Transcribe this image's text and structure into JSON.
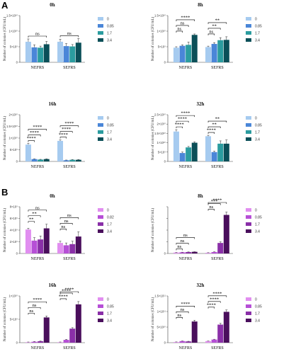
{
  "panels": [
    {
      "letter": "A"
    },
    {
      "letter": "B"
    }
  ],
  "chart_data": [
    {
      "type": "bar",
      "panel": "A",
      "title": "0h",
      "ylabel": "Number of colonies (CFU/mL)",
      "ylim": [
        0,
        15000000000.0
      ],
      "yticks": [
        0,
        5000000000.0,
        10000000000.0,
        15000000000.0
      ],
      "ytick_labels": [
        "0",
        "5×10⁹",
        "1×10¹⁰",
        "1.5×10¹⁰"
      ],
      "categories": [
        "NEFRS",
        "SEFRS"
      ],
      "legend": [
        "0",
        "0.85",
        "1.7",
        "3.4"
      ],
      "colors": [
        "#a6cbf0",
        "#4a86d8",
        "#2b9c9f",
        "#0b4f58"
      ],
      "series": [
        {
          "name": "0",
          "values": [
            6600000000.0,
            6600000000.0
          ],
          "err": [
            900000000.0,
            800000000.0
          ]
        },
        {
          "name": "0.85",
          "values": [
            4800000000.0,
            5200000000.0
          ],
          "err": [
            800000000.0,
            800000000.0
          ]
        },
        {
          "name": "1.7",
          "values": [
            4700000000.0,
            5100000000.0
          ],
          "err": [
            500000000.0,
            600000000.0
          ]
        },
        {
          "name": "3.4",
          "values": [
            5800000000.0,
            6300000000.0
          ],
          "err": [
            900000000.0,
            1300000000.0
          ]
        }
      ],
      "annotations": [
        {
          "group": 0,
          "from": 0,
          "to": 3,
          "label": "ns",
          "level": 0
        },
        {
          "group": 1,
          "from": 0,
          "to": 3,
          "label": "ns",
          "level": 0
        }
      ]
    },
    {
      "type": "bar",
      "panel": "A",
      "title": "8h",
      "ylabel": "Number of colonies (CFU/mL)",
      "ylim": [
        0,
        15000000000.0
      ],
      "yticks": [
        0,
        5000000000.0,
        10000000000.0,
        15000000000.0
      ],
      "ytick_labels": [
        "0",
        "5×10⁹",
        "1×10¹⁰",
        "1.5×10¹⁰"
      ],
      "categories": [
        "NEFRS",
        "SEFRS"
      ],
      "legend": [
        "0",
        "0.85",
        "1.7",
        "3.4"
      ],
      "colors": [
        "#a6cbf0",
        "#4a86d8",
        "#2b9c9f",
        "#0b4f58"
      ],
      "series": [
        {
          "name": "0",
          "values": [
            4700000000.0,
            4900000000.0
          ],
          "err": [
            300000000.0,
            300000000.0
          ]
        },
        {
          "name": "0.85",
          "values": [
            5300000000.0,
            5900000000.0
          ],
          "err": [
            300000000.0,
            400000000.0
          ]
        },
        {
          "name": "1.7",
          "values": [
            5600000000.0,
            7100000000.0
          ],
          "err": [
            900000000.0,
            800000000.0
          ]
        },
        {
          "name": "3.4",
          "values": [
            8800000000.0,
            7200000000.0
          ],
          "err": [
            300000000.0,
            1000000000.0
          ]
        }
      ],
      "annotations": [
        {
          "group": 0,
          "from": 0,
          "to": 1,
          "label": "ns",
          "level": 0
        },
        {
          "group": 0,
          "from": 0,
          "to": 2,
          "label": "ns",
          "level": 1
        },
        {
          "group": 0,
          "from": 0,
          "to": 3,
          "label": "****",
          "level": 2
        },
        {
          "group": 1,
          "from": 0,
          "to": 1,
          "label": "ns",
          "level": 0
        },
        {
          "group": 1,
          "from": 0,
          "to": 2,
          "label": "**",
          "level": 1
        },
        {
          "group": 1,
          "from": 0,
          "to": 3,
          "label": "**",
          "level": 2
        }
      ]
    },
    {
      "type": "bar",
      "panel": "A",
      "title": "16h",
      "ylabel": "Number of colonies (CFU/mL)",
      "ylim": [
        0,
        20000000000.0
      ],
      "yticks": [
        0,
        5000000000.0,
        10000000000.0,
        15000000000.0,
        20000000000.0
      ],
      "ytick_labels": [
        "0",
        "5×10⁹",
        "1×10¹⁰",
        "1.5×10¹⁰",
        "2×10¹⁰"
      ],
      "categories": [
        "NEFRS",
        "SEFRS"
      ],
      "legend": [
        "0",
        "0.85",
        "1.7",
        "3.4"
      ],
      "colors": [
        "#a6cbf0",
        "#4a86d8",
        "#2b9c9f",
        "#0b4f58"
      ],
      "series": [
        {
          "name": "0",
          "values": [
            7200000000.0,
            8800000000.0
          ],
          "err": [
            500000000.0,
            400000000.0
          ]
        },
        {
          "name": "0.85",
          "values": [
            1000000000.0,
            500000000.0
          ],
          "err": [
            100000000.0,
            100000000.0
          ]
        },
        {
          "name": "1.7",
          "values": [
            800000000.0,
            700000000.0
          ],
          "err": [
            100000000.0,
            100000000.0
          ]
        },
        {
          "name": "3.4",
          "values": [
            1000000000.0,
            700000000.0
          ],
          "err": [
            100000000.0,
            100000000.0
          ]
        }
      ],
      "annotations": [
        {
          "group": 0,
          "from": 0,
          "to": 1,
          "label": "****",
          "level": 0
        },
        {
          "group": 0,
          "from": 0,
          "to": 2,
          "label": "****",
          "level": 1
        },
        {
          "group": 0,
          "from": 0,
          "to": 3,
          "label": "****",
          "level": 2
        },
        {
          "group": 1,
          "from": 0,
          "to": 1,
          "label": "****",
          "level": 0
        },
        {
          "group": 1,
          "from": 0,
          "to": 2,
          "label": "****",
          "level": 1
        },
        {
          "group": 1,
          "from": 0,
          "to": 3,
          "label": "****",
          "level": 2
        }
      ]
    },
    {
      "type": "bar",
      "panel": "A",
      "title": "32h",
      "ylabel": "Number of colonies (CFU/mL)",
      "ylim": [
        0,
        25000000000.0
      ],
      "yticks": [
        0,
        5000000000.0,
        10000000000.0,
        15000000000.0,
        20000000000.0,
        25000000000.0
      ],
      "ytick_labels": [
        "0",
        "5×10⁹",
        "1×10¹⁰",
        "1.5×10¹⁰",
        "2×10¹⁰",
        "2.5×10¹⁰"
      ],
      "categories": [
        "NEFRS",
        "SEFRS"
      ],
      "legend": [
        "0",
        "0.85",
        "1.7",
        "3.4"
      ],
      "colors": [
        "#a6cbf0",
        "#4a86d8",
        "#2b9c9f",
        "#0b4f58"
      ],
      "series": [
        {
          "name": "0",
          "values": [
            16000000000.0,
            13500000000.0
          ],
          "err": [
            1000000000.0,
            500000000.0
          ]
        },
        {
          "name": "0.85",
          "values": [
            4500000000.0,
            5000000000.0
          ],
          "err": [
            500000000.0,
            500000000.0
          ]
        },
        {
          "name": "1.7",
          "values": [
            7500000000.0,
            9500000000.0
          ],
          "err": [
            500000000.0,
            1500000000.0
          ]
        },
        {
          "name": "3.4",
          "values": [
            10000000000.0,
            9500000000.0
          ],
          "err": [
            500000000.0,
            2000000000.0
          ]
        }
      ],
      "annotations": [
        {
          "group": 0,
          "from": 0,
          "to": 1,
          "label": "****",
          "level": 0
        },
        {
          "group": 0,
          "from": 0,
          "to": 2,
          "label": "****",
          "level": 1
        },
        {
          "group": 0,
          "from": 0,
          "to": 3,
          "label": "****",
          "level": 2
        },
        {
          "group": 1,
          "from": 0,
          "to": 1,
          "label": "****",
          "level": 0
        },
        {
          "group": 1,
          "from": 0,
          "to": 2,
          "label": "**",
          "level": 1
        },
        {
          "group": 1,
          "from": 0,
          "to": 3,
          "label": "**",
          "level": 2
        }
      ]
    },
    {
      "type": "bar",
      "panel": "B",
      "title": "0h",
      "ylabel": "Number of colonies (CFU/mL)",
      "ylim": [
        0,
        8000000000.0
      ],
      "yticks": [
        0,
        2000000000.0,
        4000000000.0,
        6000000000.0,
        8000000000.0
      ],
      "ytick_labels": [
        "0",
        "2×10⁹",
        "4×10⁹",
        "6×10⁹",
        "8×10⁹"
      ],
      "categories": [
        "NEFRS",
        "SEFRS"
      ],
      "legend": [
        "0",
        "0.82",
        "1.7",
        "3.4"
      ],
      "colors": [
        "#e18ef0",
        "#b64fd6",
        "#8a2fa8",
        "#4a0f5c"
      ],
      "series": [
        {
          "name": "0",
          "values": [
            4100000000.0,
            1800000000.0
          ],
          "err": [
            200000000.0,
            300000000.0
          ]
        },
        {
          "name": "0.82",
          "values": [
            2200000000.0,
            1400000000.0
          ],
          "err": [
            500000000.0,
            400000000.0
          ]
        },
        {
          "name": "1.7",
          "values": [
            2400000000.0,
            1600000000.0
          ],
          "err": [
            600000000.0,
            500000000.0
          ]
        },
        {
          "name": "3.4",
          "values": [
            4300000000.0,
            2900000000.0
          ],
          "err": [
            700000000.0,
            800000000.0
          ]
        }
      ],
      "annotations": [
        {
          "group": 0,
          "from": 0,
          "to": 1,
          "label": "**",
          "level": 0
        },
        {
          "group": 0,
          "from": 0,
          "to": 2,
          "label": "**",
          "level": 1
        },
        {
          "group": 0,
          "from": 0,
          "to": 3,
          "label": "ns",
          "level": 2
        },
        {
          "group": 1,
          "from": 0,
          "to": 1,
          "label": "ns",
          "level": 0
        },
        {
          "group": 1,
          "from": 0,
          "to": 2,
          "label": "ns",
          "level": 1
        },
        {
          "group": 1,
          "from": 0,
          "to": 3,
          "label": "ns",
          "level": 2
        }
      ]
    },
    {
      "type": "bar",
      "panel": "B",
      "title": "8h",
      "ylabel": "Number of colonies (CFU/mL)",
      "ylim": [
        0,
        200000000000.0
      ],
      "yticks": [
        0,
        50000000000.0,
        100000000000.0,
        150000000000.0,
        200000000000.0
      ],
      "ytick_labels": [
        "0",
        "",
        "",
        "",
        ""
      ],
      "categories": [
        "NEFRS",
        "SEFRS"
      ],
      "legend": [
        "0",
        "0.85",
        "1.7",
        "3.4"
      ],
      "colors": [
        "#e18ef0",
        "#b64fd6",
        "#8a2fa8",
        "#4a0f5c"
      ],
      "series": [
        {
          "name": "0",
          "values": [
            4000000000.0,
            3000000000.0
          ],
          "err": [
            500000000.0,
            500000000.0
          ]
        },
        {
          "name": "0.85",
          "values": [
            5000000000.0,
            6000000000.0
          ],
          "err": [
            500000000.0,
            1000000000.0
          ]
        },
        {
          "name": "1.7",
          "values": [
            6000000000.0,
            45000000000.0
          ],
          "err": [
            500000000.0,
            5000000000.0
          ]
        },
        {
          "name": "3.4",
          "values": [
            7000000000.0,
            165000000000.0
          ],
          "err": [
            500000000.0,
            12000000000.0
          ]
        }
      ],
      "annotations": [
        {
          "group": 0,
          "from": 0,
          "to": 1,
          "label": "ns",
          "level": 0
        },
        {
          "group": 0,
          "from": 0,
          "to": 2,
          "label": "ns",
          "level": 1
        },
        {
          "group": 0,
          "from": 0,
          "to": 3,
          "label": "ns",
          "level": 2
        },
        {
          "group": 1,
          "from": 0,
          "to": 1,
          "label": "ns",
          "level": 0
        },
        {
          "group": 1,
          "from": 0,
          "to": 2,
          "label": "***",
          "level": 1
        },
        {
          "group": 1,
          "from": 0,
          "to": 3,
          "label": "****",
          "level": 2
        }
      ]
    },
    {
      "type": "bar",
      "panel": "B",
      "title": "16h",
      "ylabel": "Number of colonies (CFU/mL)",
      "ylim": [
        0,
        10000000000.0
      ],
      "yticks": [
        0,
        5000000000.0,
        10000000000.0
      ],
      "ytick_labels": [
        "0",
        "5×10⁹",
        "1×10¹⁰"
      ],
      "categories": [
        "NEFRS",
        "SEFRS"
      ],
      "legend": [
        "0",
        "0.85",
        "1.7",
        "3.4"
      ],
      "colors": [
        "#e18ef0",
        "#b64fd6",
        "#8a2fa8",
        "#4a0f5c"
      ],
      "series": [
        {
          "name": "0",
          "values": [
            100000000.0,
            100000000.0
          ],
          "err": [
            50000000.0,
            50000000.0
          ]
        },
        {
          "name": "0.85",
          "values": [
            200000000.0,
            600000000.0
          ],
          "err": [
            50000000.0,
            100000000.0
          ]
        },
        {
          "name": "1.7",
          "values": [
            300000000.0,
            3000000000.0
          ],
          "err": [
            50000000.0,
            200000000.0
          ]
        },
        {
          "name": "3.4",
          "values": [
            5400000000.0,
            8200000000.0
          ],
          "err": [
            300000000.0,
            600000000.0
          ]
        }
      ],
      "annotations": [
        {
          "group": 0,
          "from": 0,
          "to": 1,
          "label": "ns",
          "level": 0
        },
        {
          "group": 0,
          "from": 0,
          "to": 2,
          "label": "ns",
          "level": 1
        },
        {
          "group": 0,
          "from": 0,
          "to": 3,
          "label": "****",
          "level": 2
        },
        {
          "group": 1,
          "from": 0,
          "to": 1,
          "label": "****",
          "level": 0
        },
        {
          "group": 1,
          "from": 0,
          "to": 2,
          "label": "****",
          "level": 1
        },
        {
          "group": 1,
          "from": 0,
          "to": 3,
          "label": "****",
          "level": 2
        }
      ]
    },
    {
      "type": "bar",
      "panel": "B",
      "title": "32h",
      "ylabel": "Number of colonies (CFU/mL)",
      "ylim": [
        0,
        150000000000.0
      ],
      "yticks": [
        0,
        50000000000.0,
        100000000000.0,
        150000000000.0
      ],
      "ytick_labels": [
        "0",
        "5×10¹⁰",
        "1×10¹¹",
        "1.5×10¹¹"
      ],
      "categories": [
        "NEFRS",
        "SEFRS"
      ],
      "legend": [
        "0",
        "0.85",
        "1.7",
        "3.4"
      ],
      "colors": [
        "#e18ef0",
        "#b64fd6",
        "#8a2fa8",
        "#4a0f5c"
      ],
      "series": [
        {
          "name": "0",
          "values": [
            2000000000.0,
            5000000000.0
          ],
          "err": [
            500000000.0,
            500000000.0
          ]
        },
        {
          "name": "0.85",
          "values": [
            5000000000.0,
            10000000000.0
          ],
          "err": [
            500000000.0,
            1000000000.0
          ]
        },
        {
          "name": "1.7",
          "values": [
            4000000000.0,
            58000000000.0
          ],
          "err": [
            500000000.0,
            4000000000.0
          ]
        },
        {
          "name": "3.4",
          "values": [
            68000000000.0,
            99000000000.0
          ],
          "err": [
            4000000000.0,
            6000000000.0
          ]
        }
      ],
      "annotations": [
        {
          "group": 0,
          "from": 0,
          "to": 1,
          "label": "ns",
          "level": 0
        },
        {
          "group": 0,
          "from": 0,
          "to": 2,
          "label": "ns",
          "level": 1
        },
        {
          "group": 0,
          "from": 0,
          "to": 3,
          "label": "****",
          "level": 2
        },
        {
          "group": 1,
          "from": 0,
          "to": 1,
          "label": "****",
          "level": 0
        },
        {
          "group": 1,
          "from": 0,
          "to": 2,
          "label": "****",
          "level": 1
        },
        {
          "group": 1,
          "from": 0,
          "to": 3,
          "label": "****",
          "level": 2
        }
      ]
    }
  ]
}
